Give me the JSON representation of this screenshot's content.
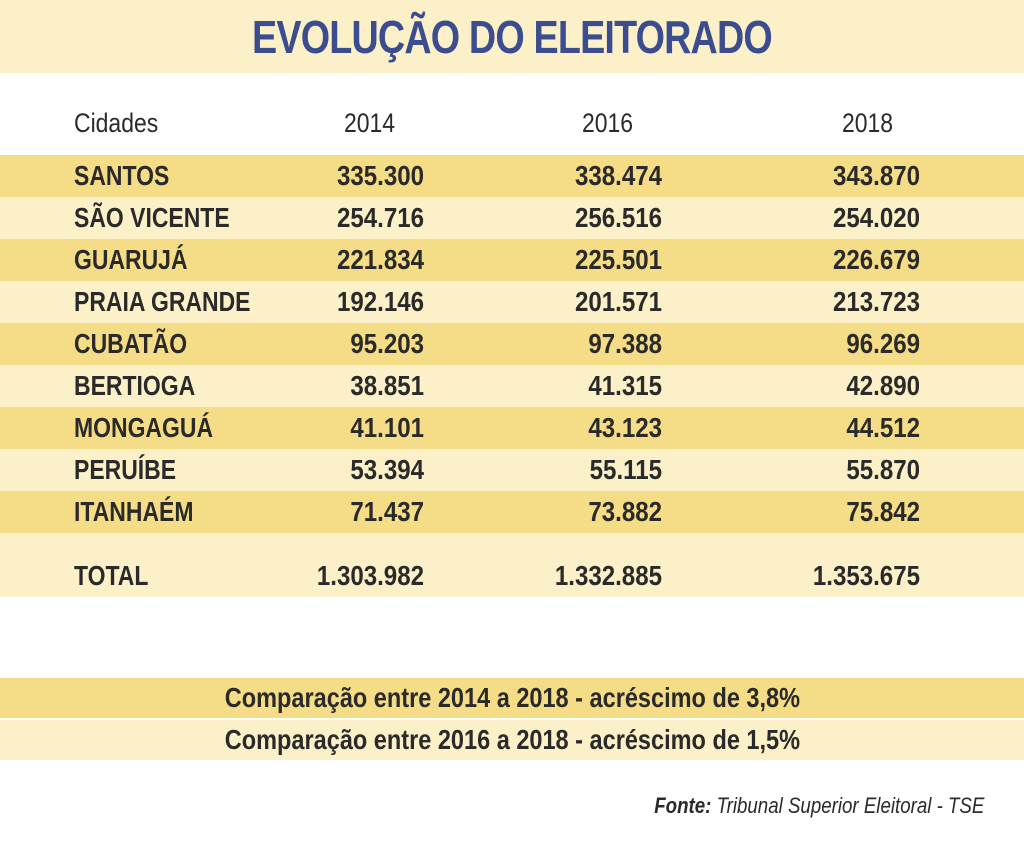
{
  "title": "EVOLUÇÃO DO ELEITORADO",
  "chart_data": {
    "type": "table",
    "columns": [
      "Cidades",
      "2014",
      "2016",
      "2018"
    ],
    "rows": [
      {
        "city": "SANTOS",
        "v2014": "335.300",
        "v2016": "338.474",
        "v2018": "343.870"
      },
      {
        "city": "SÃO VICENTE",
        "v2014": "254.716",
        "v2016": "256.516",
        "v2018": "254.020"
      },
      {
        "city": "GUARUJÁ",
        "v2014": "221.834",
        "v2016": "225.501",
        "v2018": "226.679"
      },
      {
        "city": "PRAIA GRANDE",
        "v2014": "192.146",
        "v2016": "201.571",
        "v2018": "213.723"
      },
      {
        "city": "CUBATÃO",
        "v2014": "95.203",
        "v2016": "97.388",
        "v2018": "96.269"
      },
      {
        "city": "BERTIOGA",
        "v2014": "38.851",
        "v2016": "41.315",
        "v2018": "42.890"
      },
      {
        "city": "MONGAGUÁ",
        "v2014": "41.101",
        "v2016": "43.123",
        "v2018": "44.512"
      },
      {
        "city": "PERUÍBE",
        "v2014": "53.394",
        "v2016": "55.115",
        "v2018": "55.870"
      },
      {
        "city": "ITANHAÉM",
        "v2014": "71.437",
        "v2016": "73.882",
        "v2018": "75.842"
      }
    ],
    "total": {
      "label": "TOTAL",
      "v2014": "1.303.982",
      "v2016": "1.332.885",
      "v2018": "1.353.675"
    }
  },
  "comparisons": [
    "Comparação entre 2014 a 2018 - acréscimo de 3,8%",
    "Comparação entre 2016 a 2018 - acréscimo de 1,5%"
  ],
  "source": {
    "label": "Fonte:",
    "text": " Tribunal Superior Eleitoral - TSE"
  },
  "colors": {
    "title": "#3b4d8f",
    "band_dark": "#f5dc87",
    "band_light": "#fcf0c8",
    "text": "#2a2a2a"
  }
}
